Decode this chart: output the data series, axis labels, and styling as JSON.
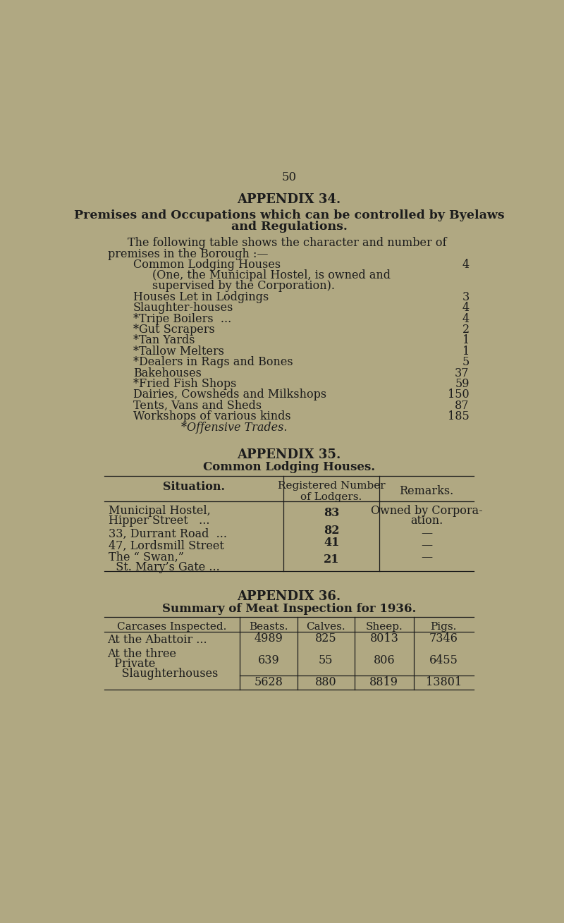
{
  "bg_color": "#b0a882",
  "text_color": "#1c1c1c",
  "page_number": "50",
  "appendix34_title": "APPENDIX 34.",
  "appendix34_subtitle1": "Premises and Occupations which can be controlled by Byelaws",
  "appendix34_subtitle2": "and Regulations.",
  "appendix34_intro1": "The following table shows the character and number of",
  "appendix34_intro2": "premises in the Borough :—",
  "premises": [
    {
      "label": "Common Lodging Houses",
      "dots": "...         ...         ...",
      "num": "4",
      "indent": 0
    },
    {
      "label": "(One, the Municipal Hostel, is owned and",
      "dots": "",
      "num": "",
      "indent": 1
    },
    {
      "label": "supervised by the Corporation).",
      "dots": "",
      "num": "",
      "indent": 1
    },
    {
      "label": "Houses Let in Lodgings",
      "dots": "...         ...         ...",
      "num": "3",
      "indent": 0
    },
    {
      "label": "Slaughter-houses",
      "dots": "...         ...         ...         ...",
      "num": "4",
      "indent": 0
    },
    {
      "label": "*Tripe Boilers  ...",
      "dots": "...         ...         ...         ...",
      "num": "4",
      "indent": 0
    },
    {
      "label": "*Gut Scrapers",
      "dots": "...         ...         ...         ...",
      "num": "2",
      "indent": 0
    },
    {
      "label": "*Tan Yards",
      "dots": "...         ...         ...         ...   ....",
      "num": "1",
      "indent": 0
    },
    {
      "label": "*Tallow Melters",
      "dots": "...         ...         ...         ...",
      "num": "1",
      "indent": 0
    },
    {
      "label": "*Dealers in Rags and Bones",
      "dots": "...         ...         ...",
      "num": "5",
      "indent": 0
    },
    {
      "label": "Bakehouses",
      "dots": "...         ...         ...         ...         ...",
      "num": "37",
      "indent": 0
    },
    {
      "label": "*Fried Fish Shops",
      "dots": "...         ...         ...         ...",
      "num": "59",
      "indent": 0
    },
    {
      "label": "Dairies, Cowsheds and Milkshops",
      "dots": "...         ...",
      "num": "150",
      "indent": 0
    },
    {
      "label": "Tents, Vans and Sheds",
      "dots": "...         ...         ...",
      "num": "87",
      "indent": 0
    },
    {
      "label": "Workshops of various kinds",
      "dots": "...         ...         ...",
      "num": "185",
      "indent": 0
    },
    {
      "label": "*Offensive Trades.",
      "dots": "",
      "num": "",
      "indent": 2
    }
  ],
  "appendix35_title": "APPENDIX 35.",
  "appendix35_subtitle": "Common Lodging Houses.",
  "table35_rows": [
    {
      "sit1": "Municipal Hostel,",
      "sit2": "Hipper Street   ...",
      "num": "83",
      "rem1": "Owned by Corpora-",
      "rem2": "ation."
    },
    {
      "sit1": "33, Durrant Road  ...",
      "sit2": "",
      "num": "82",
      "rem1": "—",
      "rem2": ""
    },
    {
      "sit1": "47, Lordsmill Street",
      "sit2": "",
      "num": "41",
      "rem1": "—",
      "rem2": ""
    },
    {
      "sit1": "The “ Swan,”",
      "sit2": "  St. Mary’s Gate ...",
      "num": "21",
      "rem1": "—",
      "rem2": ""
    }
  ],
  "appendix36_title": "APPENDIX 36.",
  "appendix36_subtitle": "Summary of Meat Inspection for 1936.",
  "table36_rows": [
    {
      "ci1": "At the Abattoir ...",
      "ci2": "",
      "ci3": "",
      "be": "4989",
      "ca": "825",
      "sh": "8013",
      "pi": "7346"
    },
    {
      "ci1": "At the three",
      "ci2": "  Private",
      "ci3": "    Slaughterhouses",
      "be": "639",
      "ca": "55",
      "sh": "806",
      "pi": "6455"
    },
    {
      "ci1": "",
      "ci2": "",
      "ci3": "",
      "be": "5628",
      "ca": "880",
      "sh": "8819",
      "pi": "13801"
    }
  ]
}
